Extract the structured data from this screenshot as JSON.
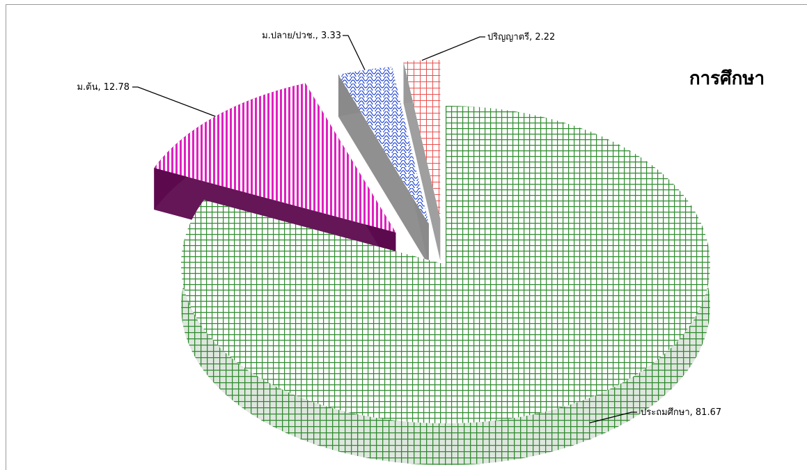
{
  "chart_data": {
    "type": "pie",
    "title": "การศึกษา",
    "series": [
      {
        "categories": [
          "ประถมศึกษา",
          "ม.ต้น",
          "ม.ปลาย/ปวช.",
          "ปริญญาตรี"
        ],
        "values": [
          81.67,
          12.78,
          3.33,
          2.22
        ]
      }
    ],
    "data_labels": [
      "ประถมศึกษา, 81.67",
      "ม.ต้น, 12.78",
      "ม.ปลาย/ปวช., 3.33",
      "ปริญญาตรี, 2.22"
    ],
    "legend": "none",
    "style": "3d-exploded",
    "colors": {
      "ประถมศึกษา": "#2e8b2e",
      "ม.ต้น": "#e020c0",
      "ม.ปลาย/ปวช.": "#1a3fd0",
      "ปริญญาตรี": "#e85050"
    }
  }
}
